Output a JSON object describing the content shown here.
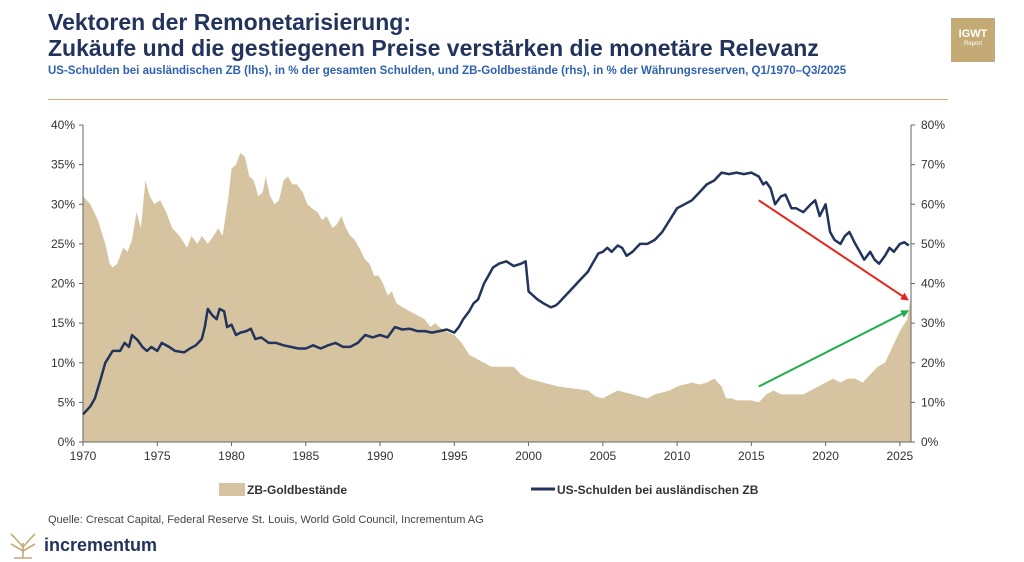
{
  "header": {
    "title_line1": "Vektoren der Remonetarisierung:",
    "title_line2": "Zukäufe und die gestiegenen Preise verstärken die monetäre Relevanz",
    "subtitle": "US-Schulden bei ausländischen ZB (lhs), in % der gesamten Schulden, und ZB-Goldbestände (rhs), in % der Währungsreserven, Q1/1970–Q3/2025"
  },
  "logo": {
    "line1": "IGWT",
    "line2": "Report"
  },
  "footer": {
    "source": "Quelle: Crescat Capital, Federal Reserve St. Louis, World Gold Council, Incrementum AG",
    "brand": "incrementum"
  },
  "colors": {
    "gold": "#d6c4a0",
    "navy": "#22335c",
    "red_arrow": "#e8231b",
    "green_arrow": "#1fae4b"
  },
  "chart_data": {
    "type": "area+line",
    "x_ticks": [
      "1970",
      "1975",
      "1980",
      "1985",
      "1990",
      "1995",
      "2000",
      "2005",
      "2010",
      "2015",
      "2020",
      "2025"
    ],
    "xlim": [
      1970,
      2025.75
    ],
    "y_left": {
      "lim": [
        0,
        40
      ],
      "ticks": [
        "0%",
        "5%",
        "10%",
        "15%",
        "20%",
        "25%",
        "30%",
        "35%",
        "40%"
      ]
    },
    "y_right": {
      "lim": [
        0,
        80
      ],
      "ticks": [
        "0%",
        "10%",
        "20%",
        "30%",
        "40%",
        "50%",
        "60%",
        "70%",
        "80%"
      ]
    },
    "legend": {
      "placement": "bottom",
      "gold_label": "ZB-Goldbestände",
      "debt_label": "US-Schulden bei ausländischen ZB"
    },
    "series": [
      {
        "name": "ZB-Goldbestände",
        "axis": "right",
        "type": "area",
        "points": [
          [
            1970,
            62
          ],
          [
            1970.5,
            60
          ],
          [
            1971,
            56
          ],
          [
            1971.5,
            50
          ],
          [
            1971.8,
            45
          ],
          [
            1972,
            44
          ],
          [
            1972.3,
            45
          ],
          [
            1972.7,
            49
          ],
          [
            1973,
            48
          ],
          [
            1973.3,
            51
          ],
          [
            1973.6,
            58
          ],
          [
            1973.9,
            54
          ],
          [
            1974.2,
            66
          ],
          [
            1974.5,
            62
          ],
          [
            1974.8,
            60
          ],
          [
            1975.2,
            61
          ],
          [
            1975.6,
            58
          ],
          [
            1976,
            54
          ],
          [
            1976.5,
            52
          ],
          [
            1977,
            49
          ],
          [
            1977.3,
            52
          ],
          [
            1977.7,
            50
          ],
          [
            1978,
            52
          ],
          [
            1978.4,
            50
          ],
          [
            1978.8,
            52
          ],
          [
            1979.1,
            54
          ],
          [
            1979.4,
            52
          ],
          [
            1979.8,
            62
          ],
          [
            1980,
            69
          ],
          [
            1980.3,
            70
          ],
          [
            1980.6,
            73
          ],
          [
            1980.9,
            72
          ],
          [
            1981.2,
            67
          ],
          [
            1981.5,
            66
          ],
          [
            1981.8,
            62
          ],
          [
            1982.1,
            63
          ],
          [
            1982.3,
            67
          ],
          [
            1982.6,
            62
          ],
          [
            1982.9,
            60
          ],
          [
            1983.2,
            61
          ],
          [
            1983.5,
            66
          ],
          [
            1983.8,
            67
          ],
          [
            1984.1,
            65
          ],
          [
            1984.4,
            65
          ],
          [
            1984.8,
            63
          ],
          [
            1985.1,
            60
          ],
          [
            1985.4,
            59
          ],
          [
            1985.8,
            58
          ],
          [
            1986.1,
            56
          ],
          [
            1986.4,
            57
          ],
          [
            1986.8,
            54
          ],
          [
            1987.1,
            55
          ],
          [
            1987.4,
            57
          ],
          [
            1987.7,
            54
          ],
          [
            1988,
            52
          ],
          [
            1988.3,
            51
          ],
          [
            1988.6,
            49
          ],
          [
            1989,
            46
          ],
          [
            1989.3,
            45
          ],
          [
            1989.6,
            42
          ],
          [
            1989.9,
            42
          ],
          [
            1990.2,
            40
          ],
          [
            1990.5,
            37
          ],
          [
            1990.8,
            38
          ],
          [
            1991.1,
            35
          ],
          [
            1991.5,
            34
          ],
          [
            1992,
            33
          ],
          [
            1992.5,
            32
          ],
          [
            1993,
            31
          ],
          [
            1993.4,
            29
          ],
          [
            1993.7,
            30
          ],
          [
            1994,
            29
          ],
          [
            1994.4,
            28
          ],
          [
            1995,
            27
          ],
          [
            1995.5,
            25
          ],
          [
            1996,
            22
          ],
          [
            1996.5,
            21
          ],
          [
            1997,
            20
          ],
          [
            1997.5,
            19
          ],
          [
            1998,
            19
          ],
          [
            1999,
            19
          ],
          [
            1999.5,
            17
          ],
          [
            2000,
            16
          ],
          [
            2001,
            15
          ],
          [
            2002,
            14
          ],
          [
            2003,
            13.5
          ],
          [
            2004,
            13
          ],
          [
            2004.5,
            11.5
          ],
          [
            2005,
            11
          ],
          [
            2005.5,
            12
          ],
          [
            2006,
            13
          ],
          [
            2007,
            12
          ],
          [
            2008,
            11
          ],
          [
            2008.5,
            12
          ],
          [
            2009,
            12.5
          ],
          [
            2009.5,
            13
          ],
          [
            2010,
            14
          ],
          [
            2010.5,
            14.5
          ],
          [
            2011,
            15
          ],
          [
            2011.5,
            14.5
          ],
          [
            2012,
            15
          ],
          [
            2012.5,
            16
          ],
          [
            2013,
            14
          ],
          [
            2013.3,
            11
          ],
          [
            2013.7,
            11
          ],
          [
            2014,
            10.5
          ],
          [
            2014.5,
            10.5
          ],
          [
            2015,
            10.5
          ],
          [
            2015.5,
            10
          ],
          [
            2016,
            12
          ],
          [
            2016.5,
            13
          ],
          [
            2017,
            12
          ],
          [
            2018,
            12
          ],
          [
            2018.5,
            12
          ],
          [
            2019,
            13
          ],
          [
            2019.5,
            14
          ],
          [
            2020,
            15
          ],
          [
            2020.5,
            16
          ],
          [
            2021,
            15
          ],
          [
            2021.5,
            16
          ],
          [
            2022,
            16
          ],
          [
            2022.5,
            15
          ],
          [
            2023,
            17
          ],
          [
            2023.5,
            19
          ],
          [
            2024,
            20
          ],
          [
            2024.5,
            24
          ],
          [
            2025,
            28
          ],
          [
            2025.5,
            31
          ],
          [
            2025.75,
            37
          ]
        ]
      },
      {
        "name": "US-Schulden bei ausländischen ZB",
        "axis": "left",
        "type": "line",
        "points": [
          [
            1970,
            3.5
          ],
          [
            1970.5,
            4.5
          ],
          [
            1970.8,
            5.5
          ],
          [
            1971.2,
            8
          ],
          [
            1971.5,
            10
          ],
          [
            1972,
            11.5
          ],
          [
            1972.5,
            11.5
          ],
          [
            1972.8,
            12.5
          ],
          [
            1973.1,
            12
          ],
          [
            1973.3,
            13.5
          ],
          [
            1973.7,
            12.8
          ],
          [
            1974,
            12
          ],
          [
            1974.3,
            11.5
          ],
          [
            1974.6,
            12
          ],
          [
            1975,
            11.5
          ],
          [
            1975.3,
            12.5
          ],
          [
            1975.8,
            12
          ],
          [
            1976.2,
            11.5
          ],
          [
            1976.8,
            11.3
          ],
          [
            1977.2,
            11.8
          ],
          [
            1977.6,
            12.2
          ],
          [
            1978,
            13
          ],
          [
            1978.2,
            14.5
          ],
          [
            1978.4,
            16.8
          ],
          [
            1978.7,
            16
          ],
          [
            1979,
            15.5
          ],
          [
            1979.2,
            16.8
          ],
          [
            1979.5,
            16.5
          ],
          [
            1979.7,
            14.5
          ],
          [
            1980,
            14.8
          ],
          [
            1980.3,
            13.5
          ],
          [
            1980.6,
            13.8
          ],
          [
            1981,
            14
          ],
          [
            1981.3,
            14.3
          ],
          [
            1981.6,
            13
          ],
          [
            1982,
            13.2
          ],
          [
            1982.5,
            12.5
          ],
          [
            1983,
            12.5
          ],
          [
            1983.5,
            12.2
          ],
          [
            1984,
            12
          ],
          [
            1984.5,
            11.8
          ],
          [
            1985,
            11.8
          ],
          [
            1985.5,
            12.2
          ],
          [
            1986,
            11.8
          ],
          [
            1986.5,
            12.2
          ],
          [
            1987,
            12.5
          ],
          [
            1987.5,
            12
          ],
          [
            1988,
            12
          ],
          [
            1988.5,
            12.5
          ],
          [
            1989,
            13.5
          ],
          [
            1989.5,
            13.2
          ],
          [
            1990,
            13.5
          ],
          [
            1990.5,
            13.2
          ],
          [
            1991,
            14.5
          ],
          [
            1991.5,
            14.2
          ],
          [
            1992,
            14.3
          ],
          [
            1992.5,
            14
          ],
          [
            1993,
            14
          ],
          [
            1993.5,
            13.8
          ],
          [
            1994,
            14
          ],
          [
            1994.5,
            14.2
          ],
          [
            1995,
            13.8
          ],
          [
            1995.3,
            14.5
          ],
          [
            1995.6,
            15.5
          ],
          [
            1996,
            16.5
          ],
          [
            1996.3,
            17.5
          ],
          [
            1996.6,
            18
          ],
          [
            1997,
            20
          ],
          [
            1997.3,
            21
          ],
          [
            1997.6,
            22
          ],
          [
            1998,
            22.5
          ],
          [
            1998.5,
            22.8
          ],
          [
            1999,
            22.2
          ],
          [
            1999.5,
            22.5
          ],
          [
            1999.8,
            22.8
          ],
          [
            2000,
            19
          ],
          [
            2000.3,
            18.5
          ],
          [
            2000.6,
            18
          ],
          [
            2001,
            17.5
          ],
          [
            2001.5,
            17
          ],
          [
            2001.8,
            17.2
          ],
          [
            2002,
            17.5
          ],
          [
            2002.5,
            18.5
          ],
          [
            2003,
            19.5
          ],
          [
            2003.5,
            20.5
          ],
          [
            2004,
            21.5
          ],
          [
            2004.3,
            22.5
          ],
          [
            2004.7,
            23.8
          ],
          [
            2005,
            24
          ],
          [
            2005.3,
            24.5
          ],
          [
            2005.6,
            24
          ],
          [
            2006,
            24.8
          ],
          [
            2006.3,
            24.5
          ],
          [
            2006.6,
            23.5
          ],
          [
            2007,
            24
          ],
          [
            2007.5,
            25
          ],
          [
            2008,
            25
          ],
          [
            2008.5,
            25.5
          ],
          [
            2009,
            26.5
          ],
          [
            2009.5,
            28
          ],
          [
            2010,
            29.5
          ],
          [
            2010.5,
            30
          ],
          [
            2011,
            30.5
          ],
          [
            2011.5,
            31.5
          ],
          [
            2012,
            32.5
          ],
          [
            2012.5,
            33
          ],
          [
            2013,
            34
          ],
          [
            2013.5,
            33.8
          ],
          [
            2014,
            34
          ],
          [
            2014.5,
            33.8
          ],
          [
            2015,
            34
          ],
          [
            2015.5,
            33.5
          ],
          [
            2015.8,
            32.5
          ],
          [
            2016,
            32.8
          ],
          [
            2016.3,
            32
          ],
          [
            2016.6,
            30
          ],
          [
            2017,
            31
          ],
          [
            2017.3,
            31.2
          ],
          [
            2017.7,
            29.5
          ],
          [
            2018,
            29.5
          ],
          [
            2018.5,
            29
          ],
          [
            2019,
            30
          ],
          [
            2019.3,
            30.5
          ],
          [
            2019.6,
            28.5
          ],
          [
            2020,
            30
          ],
          [
            2020.3,
            26.5
          ],
          [
            2020.6,
            25.5
          ],
          [
            2021,
            25
          ],
          [
            2021.3,
            26
          ],
          [
            2021.6,
            26.5
          ],
          [
            2022,
            25
          ],
          [
            2022.3,
            24
          ],
          [
            2022.6,
            23
          ],
          [
            2023,
            24
          ],
          [
            2023.3,
            23
          ],
          [
            2023.6,
            22.5
          ],
          [
            2024,
            23.5
          ],
          [
            2024.3,
            24.5
          ],
          [
            2024.6,
            24
          ],
          [
            2025,
            25
          ],
          [
            2025.3,
            25.2
          ],
          [
            2025.6,
            24.8
          ]
        ]
      }
    ],
    "annotations": [
      {
        "type": "arrow",
        "color": "red",
        "from": [
          2015.5,
          30.5
        ],
        "to": [
          2025.5,
          18
        ]
      },
      {
        "type": "arrow",
        "color": "green",
        "from": [
          2015.5,
          7
        ],
        "to": [
          2025.5,
          16.5
        ]
      }
    ]
  }
}
